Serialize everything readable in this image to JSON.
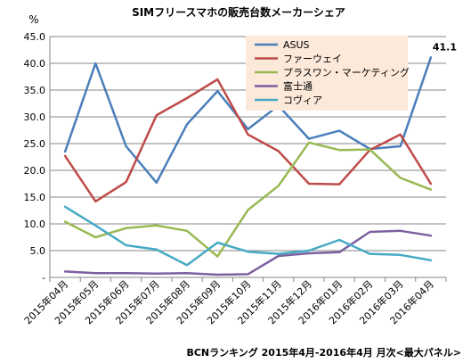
{
  "chart_data": {
    "type": "line",
    "title": "SIMフリースマホの販売台数メーカーシェア",
    "ylabel": "%",
    "ylim": [
      0,
      45
    ],
    "yticks": [
      0,
      5,
      10,
      15,
      20,
      25,
      30,
      35,
      40,
      45
    ],
    "ytick_labels": [
      "-",
      "5.0",
      "10.0",
      "15.0",
      "20.0",
      "25.0",
      "30.0",
      "35.0",
      "40.0",
      "45.0"
    ],
    "categories": [
      "2015年04月",
      "2015年05月",
      "2015年06月",
      "2015年07月",
      "2015年08月",
      "2015年09月",
      "2015年10月",
      "2015年11月",
      "2015年12月",
      "2016年01月",
      "2016年02月",
      "2016年03月",
      "2016年04月"
    ],
    "grid": true,
    "legend_position": "top-right",
    "series": [
      {
        "name": "ASUS",
        "color": "#4a7ebb",
        "values": [
          23.5,
          40.0,
          24.5,
          17.7,
          28.6,
          34.8,
          27.7,
          32.1,
          25.9,
          27.4,
          24.0,
          24.5,
          41.1
        ]
      },
      {
        "name": "ファーウェイ",
        "color": "#be4b48",
        "values": [
          22.7,
          14.2,
          17.8,
          30.3,
          33.5,
          37.0,
          26.7,
          23.6,
          17.5,
          17.4,
          23.8,
          26.7,
          17.5
        ]
      },
      {
        "name": "プラスワン・マーケティング",
        "color": "#98b954",
        "values": [
          10.4,
          7.5,
          9.2,
          9.7,
          8.7,
          3.9,
          12.6,
          17.1,
          25.2,
          23.8,
          23.9,
          18.6,
          16.4
        ]
      },
      {
        "name": "富士通",
        "color": "#7d60a0",
        "values": [
          1.1,
          0.8,
          0.8,
          0.7,
          0.8,
          0.5,
          0.6,
          4.0,
          4.5,
          4.7,
          8.5,
          8.7,
          7.8
        ]
      },
      {
        "name": "コヴィア",
        "color": "#46aac5",
        "values": [
          13.2,
          9.7,
          6.0,
          5.2,
          2.3,
          6.5,
          4.8,
          4.4,
          5.0,
          7.0,
          4.4,
          4.2,
          3.2
        ]
      }
    ],
    "annotations": [
      {
        "series": "ASUS",
        "category": "2016年04月",
        "text": "41.1"
      }
    ],
    "source_note": "BCNランキング 2015年4月-2016年4月 月次<最大パネル>"
  }
}
